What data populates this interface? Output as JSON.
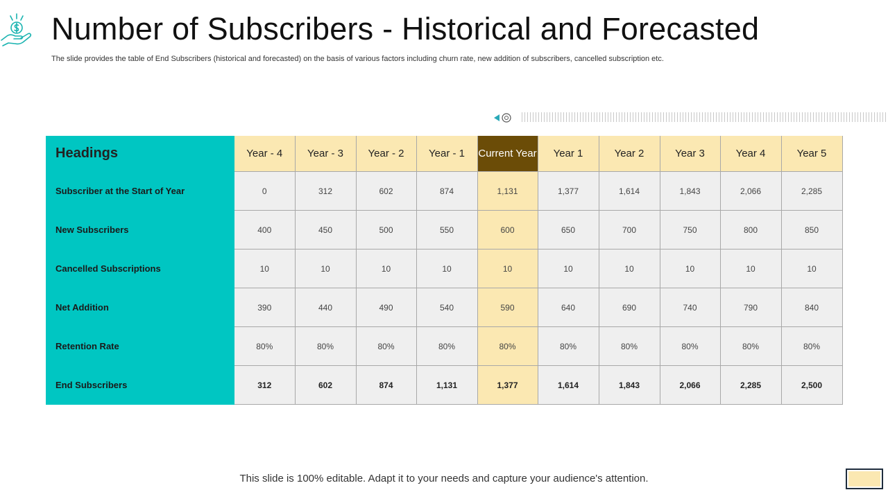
{
  "slide": {
    "title": "Number of Subscribers - Historical and Forecasted",
    "subtitle": "The slide provides the table of End Subscribers (historical and forecasted) on the basis of various factors including churn rate, new addition of subscribers, cancelled subscription etc.",
    "footer": "This slide is 100% editable. Adapt it to your needs and capture your audience's attention.",
    "icon": "hand-holding-coin-icon"
  },
  "colors": {
    "teal": "#00c6c2",
    "light_yellow": "#fbe8b2",
    "brown": "#6b4c07",
    "gray_cell": "#efefef"
  },
  "table": {
    "corner": "Headings",
    "columns": [
      "Year - 4",
      "Year - 3",
      "Year - 2",
      "Year - 1",
      "Current Year",
      "Year 1",
      "Year 2",
      "Year 3",
      "Year 4",
      "Year 5"
    ],
    "rows": [
      {
        "label": "Subscriber at the Start of Year",
        "values": [
          "0",
          "312",
          "602",
          "874",
          "1,131",
          "1,377",
          "1,614",
          "1,843",
          "2,066",
          "2,285"
        ]
      },
      {
        "label": "New Subscribers",
        "values": [
          "400",
          "450",
          "500",
          "550",
          "600",
          "650",
          "700",
          "750",
          "800",
          "850"
        ]
      },
      {
        "label": "Cancelled Subscriptions",
        "values": [
          "10",
          "10",
          "10",
          "10",
          "10",
          "10",
          "10",
          "10",
          "10",
          "10"
        ]
      },
      {
        "label": "Net Addition",
        "values": [
          "390",
          "440",
          "490",
          "540",
          "590",
          "640",
          "690",
          "740",
          "790",
          "840"
        ]
      },
      {
        "label": "Retention Rate",
        "values": [
          "80%",
          "80%",
          "80%",
          "80%",
          "80%",
          "80%",
          "80%",
          "80%",
          "80%",
          "80%"
        ]
      },
      {
        "label": "End Subscribers",
        "values": [
          "312",
          "602",
          "874",
          "1,131",
          "1,377",
          "1,614",
          "1,843",
          "2,066",
          "2,285",
          "2,500"
        ]
      }
    ]
  }
}
